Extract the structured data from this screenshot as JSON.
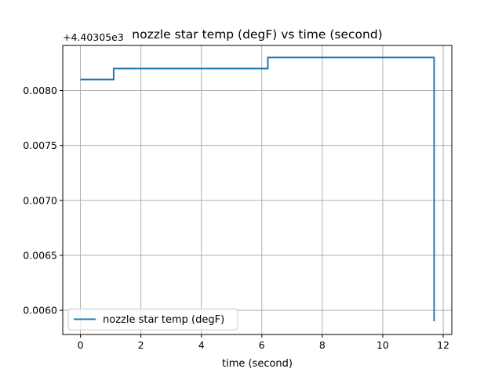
{
  "chart_data": {
    "type": "line",
    "title": "nozzle star temp (degF) vs time (second)",
    "xlabel": "time (second)",
    "ylabel": "",
    "y_offset_label": "+4.40305e3",
    "xlim": [
      -0.585,
      12.285
    ],
    "ylim": [
      0.00578,
      0.00841
    ],
    "xticks": [
      0,
      2,
      4,
      6,
      8,
      10,
      12
    ],
    "xtick_labels": [
      "0",
      "2",
      "4",
      "6",
      "8",
      "10",
      "12"
    ],
    "yticks": [
      0.006,
      0.0065,
      0.007,
      0.0075,
      0.008
    ],
    "ytick_labels": [
      "0.0060",
      "0.0065",
      "0.0070",
      "0.0075",
      "0.0080"
    ],
    "grid": true,
    "legend_position": "lower-left",
    "series": [
      {
        "name": "nozzle star temp (degF)",
        "color": "#1f77b4",
        "step": true,
        "x": [
          0,
          1.1,
          1.1,
          6.2,
          6.2,
          11.7,
          11.7
        ],
        "y": [
          0.0081,
          0.0081,
          0.0082,
          0.0082,
          0.0083,
          0.0083,
          0.0059
        ]
      }
    ]
  }
}
